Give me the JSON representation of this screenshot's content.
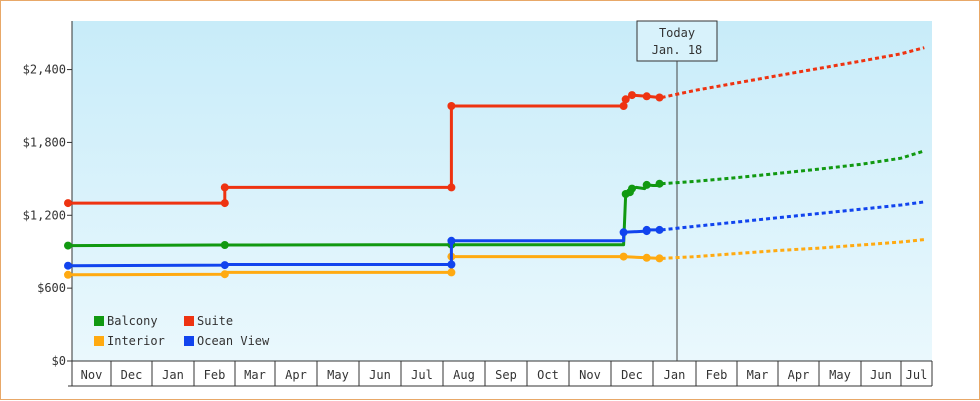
{
  "chart_data": {
    "type": "line",
    "y_axis": {
      "range": [
        0,
        2800
      ],
      "ticks": [
        0,
        600,
        1200,
        1800,
        2400
      ],
      "tick_labels": [
        "$0",
        "$600",
        "$1,200",
        "$1,800",
        "$2,400"
      ]
    },
    "x_axis": {
      "months": [
        "Nov",
        "Dec",
        "Jan",
        "Feb",
        "Mar",
        "Apr",
        "May",
        "Jun",
        "Jul",
        "Aug",
        "Sep",
        "Oct",
        "Nov",
        "Dec",
        "Jan",
        "Feb",
        "Mar",
        "Apr",
        "May",
        "Jun",
        "Jul"
      ]
    },
    "today_marker": {
      "line1": "Today",
      "line2": "Jan. 18"
    },
    "grid": false,
    "legend_placement": "bottom-left",
    "series": [
      {
        "name": "Balcony",
        "color": "#119911",
        "history": [
          [
            0,
            950
          ],
          [
            3.5,
            955
          ],
          [
            9.15,
            958
          ],
          [
            9.2,
            958
          ],
          [
            13.3,
            958
          ],
          [
            13.35,
            1375
          ],
          [
            13.45,
            1390
          ],
          [
            13.5,
            1420
          ],
          [
            13.6,
            1430
          ],
          [
            13.8,
            1420
          ],
          [
            13.85,
            1450
          ],
          [
            14.0,
            1445
          ],
          [
            14.15,
            1445
          ],
          [
            14.18,
            1460
          ]
        ],
        "markers": [
          [
            0,
            950
          ],
          [
            3.75,
            955
          ],
          [
            9.2,
            958
          ],
          [
            13.35,
            1375
          ],
          [
            13.45,
            1390
          ],
          [
            13.5,
            1420
          ],
          [
            13.85,
            1450
          ],
          [
            14.15,
            1460
          ]
        ],
        "projection": [
          [
            14.2,
            1460
          ],
          [
            15,
            1480
          ],
          [
            16,
            1510
          ],
          [
            17,
            1545
          ],
          [
            18,
            1580
          ],
          [
            19,
            1620
          ],
          [
            20,
            1670
          ],
          [
            20.75,
            1730
          ]
        ]
      },
      {
        "name": "Suite",
        "color": "#ee3311",
        "history": [
          [
            0,
            1300
          ],
          [
            3.75,
            1300
          ],
          [
            3.75,
            1430
          ],
          [
            9.2,
            1430
          ],
          [
            9.2,
            2100
          ],
          [
            13.3,
            2100
          ],
          [
            13.35,
            2155
          ],
          [
            13.5,
            2190
          ],
          [
            13.85,
            2180
          ],
          [
            14.15,
            2170
          ]
        ],
        "markers": [
          [
            0,
            1300
          ],
          [
            3.75,
            1300
          ],
          [
            3.75,
            1430
          ],
          [
            9.2,
            1430
          ],
          [
            9.2,
            2100
          ],
          [
            13.3,
            2100
          ],
          [
            13.35,
            2155
          ],
          [
            13.5,
            2190
          ],
          [
            13.85,
            2180
          ],
          [
            14.15,
            2170
          ]
        ],
        "projection": [
          [
            14.2,
            2170
          ],
          [
            15,
            2230
          ],
          [
            16,
            2290
          ],
          [
            17,
            2350
          ],
          [
            18,
            2410
          ],
          [
            19,
            2470
          ],
          [
            20,
            2530
          ],
          [
            20.75,
            2580
          ]
        ]
      },
      {
        "name": "Interior",
        "color": "#ffaa11",
        "history": [
          [
            0,
            710
          ],
          [
            3.75,
            715
          ],
          [
            3.75,
            730
          ],
          [
            9.2,
            730
          ],
          [
            9.2,
            860
          ],
          [
            13.3,
            860
          ],
          [
            13.85,
            850
          ],
          [
            14.15,
            845
          ]
        ],
        "markers": [
          [
            0,
            710
          ],
          [
            3.75,
            715
          ],
          [
            9.2,
            730
          ],
          [
            9.2,
            860
          ],
          [
            13.3,
            860
          ],
          [
            13.85,
            850
          ],
          [
            14.15,
            845
          ]
        ],
        "projection": [
          [
            14.2,
            845
          ],
          [
            15,
            860
          ],
          [
            16,
            885
          ],
          [
            17,
            910
          ],
          [
            18,
            930
          ],
          [
            19,
            955
          ],
          [
            20,
            980
          ],
          [
            20.75,
            1000
          ]
        ]
      },
      {
        "name": "Ocean View",
        "color": "#1144ee",
        "history": [
          [
            0,
            785
          ],
          [
            3.75,
            790
          ],
          [
            3.75,
            795
          ],
          [
            9.2,
            795
          ],
          [
            9.2,
            990
          ],
          [
            13.3,
            990
          ],
          [
            13.3,
            1060
          ],
          [
            13.85,
            1070
          ],
          [
            13.85,
            1080
          ],
          [
            14.15,
            1080
          ]
        ],
        "markers": [
          [
            0,
            785
          ],
          [
            3.75,
            790
          ],
          [
            9.2,
            795
          ],
          [
            9.2,
            990
          ],
          [
            13.3,
            1060
          ],
          [
            13.85,
            1070
          ],
          [
            13.85,
            1080
          ],
          [
            14.15,
            1080
          ]
        ],
        "projection": [
          [
            14.2,
            1080
          ],
          [
            15,
            1110
          ],
          [
            16,
            1145
          ],
          [
            17,
            1180
          ],
          [
            18,
            1215
          ],
          [
            19,
            1250
          ],
          [
            20,
            1285
          ],
          [
            20.75,
            1310
          ]
        ]
      }
    ],
    "legend": [
      {
        "label": "Balcony",
        "color": "#119911"
      },
      {
        "label": "Suite",
        "color": "#ee3311"
      },
      {
        "label": "Interior",
        "color": "#ffaa11"
      },
      {
        "label": "Ocean View",
        "color": "#1144ee"
      }
    ]
  }
}
